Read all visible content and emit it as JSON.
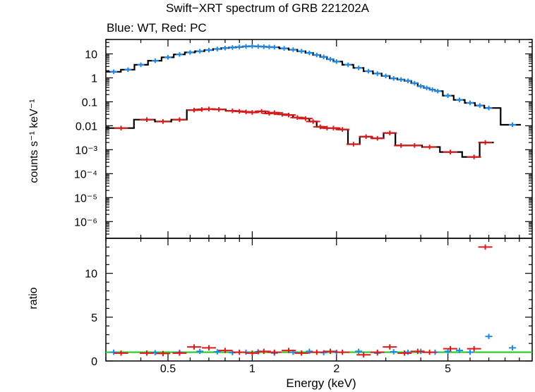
{
  "title": "Swift−XRT spectrum of GRB 221202A",
  "subtitle": "Blue: WT, Red: PC",
  "xlabel": "Energy (keV)",
  "ylabel_top": "counts s⁻¹ keV⁻¹",
  "ylabel_bottom": "ratio",
  "colors": {
    "wt": "#1e8ae6",
    "pc": "#e01818",
    "model": "#000000",
    "unity": "#22cc22"
  },
  "chart_data": [
    {
      "type": "scatter",
      "panel": "spectrum",
      "xscale": "log",
      "yscale": "log",
      "xlim": [
        0.3,
        10
      ],
      "ylim": [
        2e-07,
        40
      ],
      "x_ticks": [
        "0.5",
        "1",
        "2",
        "5"
      ],
      "y_ticks": [
        "10",
        "1",
        "0.1",
        "0.01",
        "10⁻³",
        "10⁻⁴",
        "10⁻⁵",
        "10⁻⁶"
      ],
      "series": [
        {
          "key": "wt",
          "x": [
            0.32,
            0.36,
            0.4,
            0.45,
            0.5,
            0.55,
            0.6,
            0.65,
            0.7,
            0.75,
            0.8,
            0.85,
            0.9,
            0.95,
            1.0,
            1.05,
            1.1,
            1.15,
            1.2,
            1.3,
            1.4,
            1.5,
            1.6,
            1.7,
            1.8,
            1.9,
            2.0,
            2.2,
            2.4,
            2.6,
            2.8,
            3.0,
            3.2,
            3.4,
            3.6,
            3.8,
            4.0,
            4.2,
            4.4,
            4.6,
            5.0,
            5.5,
            6.0,
            6.5,
            7.0,
            8.5
          ],
          "y": [
            1.8,
            2.2,
            3.5,
            5.2,
            7.2,
            9.5,
            11.5,
            13.0,
            14.5,
            16.0,
            17.5,
            18.5,
            19.5,
            20.5,
            21.0,
            20.5,
            20.0,
            19.5,
            19.0,
            17.0,
            15.0,
            13.0,
            11.0,
            9.0,
            7.5,
            6.0,
            4.8,
            3.5,
            2.6,
            1.9,
            1.5,
            1.2,
            0.95,
            0.85,
            0.75,
            0.6,
            0.45,
            0.38,
            0.32,
            0.28,
            0.18,
            0.12,
            0.09,
            0.07,
            0.055,
            0.011
          ]
        },
        {
          "key": "pc",
          "x": [
            0.34,
            0.42,
            0.48,
            0.55,
            0.62,
            0.66,
            0.7,
            0.76,
            0.85,
            0.9,
            0.95,
            1.0,
            1.08,
            1.15,
            1.2,
            1.28,
            1.35,
            1.45,
            1.55,
            1.65,
            1.75,
            1.85,
            1.95,
            2.1,
            2.3,
            2.55,
            2.8,
            3.1,
            3.4,
            3.8,
            4.3,
            5.1,
            6.2,
            6.8
          ],
          "y": [
            0.008,
            0.018,
            0.015,
            0.018,
            0.045,
            0.048,
            0.05,
            0.048,
            0.042,
            0.04,
            0.038,
            0.036,
            0.04,
            0.033,
            0.035,
            0.03,
            0.028,
            0.022,
            0.02,
            0.015,
            0.009,
            0.008,
            0.008,
            0.007,
            0.0017,
            0.0035,
            0.003,
            0.005,
            0.0015,
            0.0015,
            0.0013,
            0.0008,
            0.0005,
            0.002
          ]
        }
      ]
    },
    {
      "type": "scatter",
      "panel": "ratio",
      "xscale": "log",
      "xlim": [
        0.3,
        10
      ],
      "ylim": [
        0,
        14
      ],
      "x_ticks": [
        "0.5",
        "1",
        "2",
        "5"
      ],
      "y_ticks": [
        "0",
        "5",
        "10"
      ],
      "reference_line": 1,
      "series": [
        {
          "key": "wt",
          "x": [
            0.32,
            0.45,
            0.55,
            0.65,
            0.75,
            0.85,
            0.95,
            1.05,
            1.2,
            1.4,
            1.6,
            1.8,
            2.0,
            2.4,
            2.8,
            3.2,
            3.6,
            4.0,
            4.5,
            5.0,
            5.5,
            6.0,
            7.0,
            8.5
          ],
          "y": [
            1.0,
            0.95,
            1.0,
            1.1,
            1.05,
            0.95,
            1.0,
            1.05,
            0.9,
            1.0,
            1.1,
            0.95,
            1.0,
            1.1,
            0.9,
            1.05,
            1.0,
            1.1,
            1.0,
            1.1,
            1.2,
            1.0,
            2.8,
            1.5
          ]
        },
        {
          "key": "pc",
          "x": [
            0.34,
            0.42,
            0.48,
            0.55,
            0.62,
            0.7,
            0.8,
            0.9,
            1.0,
            1.1,
            1.2,
            1.35,
            1.5,
            1.7,
            1.9,
            2.1,
            2.5,
            2.8,
            3.1,
            3.5,
            3.9,
            4.3,
            5.1,
            6.2,
            6.8
          ],
          "y": [
            0.9,
            0.9,
            0.85,
            0.9,
            1.6,
            1.5,
            1.2,
            1.0,
            0.9,
            1.1,
            1.0,
            1.2,
            0.9,
            1.0,
            1.1,
            1.0,
            0.7,
            1.0,
            1.6,
            0.9,
            1.1,
            1.0,
            1.4,
            1.4,
            13
          ]
        }
      ]
    }
  ]
}
